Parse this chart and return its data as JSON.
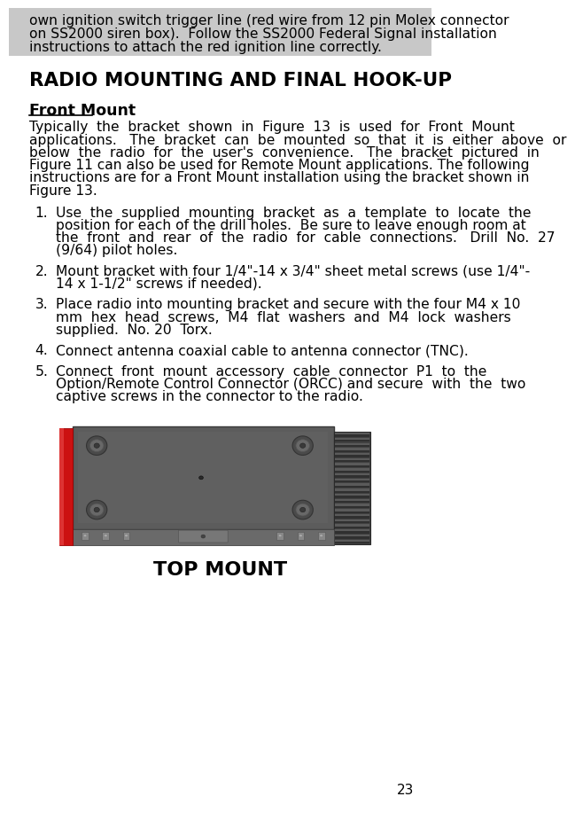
{
  "bg_color": "#ffffff",
  "page_number": "23",
  "header_bg_color": "#c8c8c8",
  "header_lines": [
    "own ignition switch trigger line (red wire from 12 pin Molex connector",
    "on SS2000 siren box).  Follow the SS2000 Federal Signal installation",
    "instructions to attach the red ignition line correctly."
  ],
  "section_title": "RADIO MOUNTING AND FINAL HOOK-UP",
  "subsection_title": "Front Mount",
  "body_lines": [
    "Typically  the  bracket  shown  in  Figure  13  is  used  for  Front  Mount",
    "applications.   The  bracket  can  be  mounted  so  that  it  is  either  above  or",
    "below  the  radio  for  the  user's  convenience.   The  bracket  pictured  in",
    "Figure 11 can also be used for Remote Mount applications. The following",
    "instructions are for a Front Mount installation using the bracket shown in",
    "Figure 13."
  ],
  "list_items": [
    {
      "num": "1.",
      "lines": [
        "Use  the  supplied  mounting  bracket  as  a  template  to  locate  the",
        "position for each of the drill holes.  Be sure to leave enough room at",
        "the  front  and  rear  of  the  radio  for  cable  connections.   Drill  No.  27",
        "(9/64) pilot holes."
      ]
    },
    {
      "num": "2.",
      "lines": [
        "Mount bracket with four 1/4\"-14 x 3/4\" sheet metal screws (use 1/4\"-",
        "14 x 1-1/2\" screws if needed)."
      ]
    },
    {
      "num": "3.",
      "lines": [
        "Place radio into mounting bracket and secure with the four M4 x 10",
        "mm  hex  head  screws,  M4  flat  washers  and  M4  lock  washers",
        "supplied.  No. 20  Torx."
      ]
    },
    {
      "num": "4.",
      "lines": [
        "Connect antenna coaxial cable to antenna connector (TNC)."
      ]
    },
    {
      "num": "5.",
      "lines": [
        "Connect  front  mount  accessory  cable  connector  P1  to  the",
        "Option/Remote Control Connector (ORCC) and secure  with  the  two",
        "captive screws in the connector to the radio."
      ]
    }
  ],
  "image_caption": "TOP MOUNT",
  "ml": 30,
  "mr": 590,
  "text_color": "#000000",
  "fs_body": 11.2,
  "fs_section": 15.5,
  "fs_subsection": 12.5,
  "fs_caption": 16.0,
  "lh": 18.5,
  "header_lh": 19.5
}
